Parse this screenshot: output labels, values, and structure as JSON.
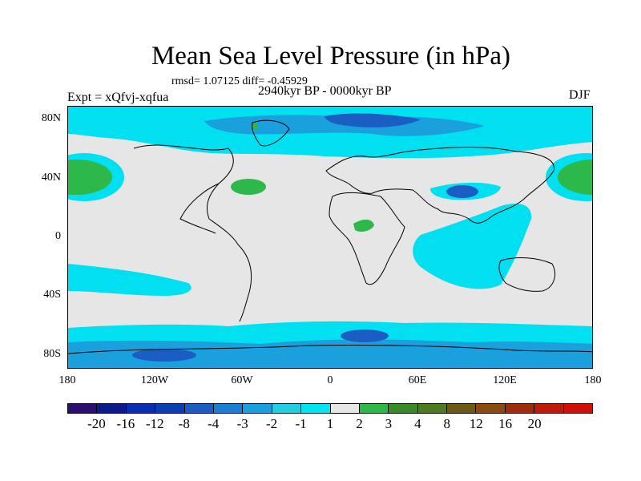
{
  "title": "Mean Sea Level Pressure (in hPa)",
  "stats": "rmsd= 1.07125 diff= -0.45929",
  "period": "2940kyr BP - 0000kyr BP",
  "experiment": "Expt = xQfvj-xqfua",
  "season": "DJF",
  "y_axis_labels": [
    "80N",
    "40N",
    "0",
    "40S",
    "80S"
  ],
  "x_axis_labels": [
    "180",
    "120W",
    "60W",
    "0",
    "60E",
    "120E",
    "180"
  ],
  "colorbar": {
    "colors": [
      "#2a0f6e",
      "#0c1a8c",
      "#0a2eb0",
      "#0a3fb4",
      "#1a5ec4",
      "#1a7fd0",
      "#1aa0dc",
      "#22cfe0",
      "#00e5f0",
      "#e6e6e6",
      "#2db84a",
      "#3a8a28",
      "#4f7a1e",
      "#6a5a14",
      "#8a4a10",
      "#a02c0c",
      "#c01a08",
      "#d01008"
    ],
    "labels": [
      "-20",
      "-16",
      "-12",
      "-8",
      "-4",
      "-3",
      "-2",
      "-1",
      "1",
      "2",
      "3",
      "4",
      "8",
      "12",
      "16",
      "20"
    ]
  },
  "map_colors": {
    "background": "#e6e6e6",
    "light_blue": "#00e0f0",
    "mid_blue": "#1aa0dc",
    "deep_blue": "#1a5ec4",
    "green": "#2db84a",
    "coast": "#000000"
  }
}
